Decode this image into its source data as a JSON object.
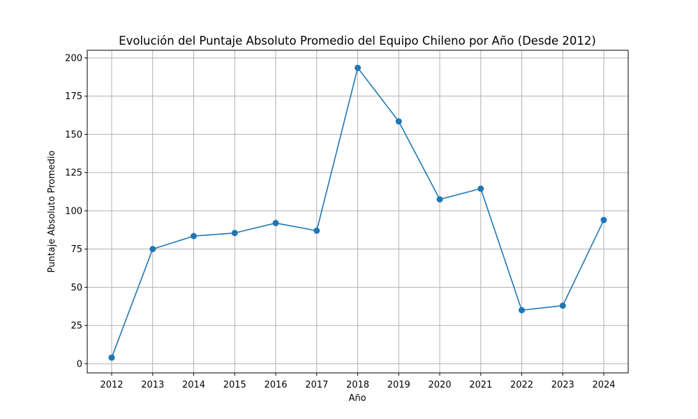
{
  "chart_data": {
    "type": "line",
    "title": "Evolución del Puntaje Absoluto Promedio del Equipo Chileno por Año (Desde 2012)",
    "xlabel": "Año",
    "ylabel": "Puntaje Absoluto Promedio",
    "x": [
      "2012",
      "2013",
      "2014",
      "2015",
      "2016",
      "2017",
      "2018",
      "2019",
      "2020",
      "2021",
      "2022",
      "2023",
      "2024"
    ],
    "series": [
      {
        "values": [
          4,
          75,
          83.5,
          85.5,
          92,
          87,
          193.5,
          158.5,
          107.5,
          114.5,
          35,
          38,
          94
        ],
        "color": "#1f77b4",
        "marker": "circle"
      }
    ],
    "yticks": [
      "0",
      "25",
      "50",
      "75",
      "100",
      "125",
      "150",
      "175",
      "200"
    ],
    "ylim": [
      -6,
      205
    ],
    "grid": true
  }
}
